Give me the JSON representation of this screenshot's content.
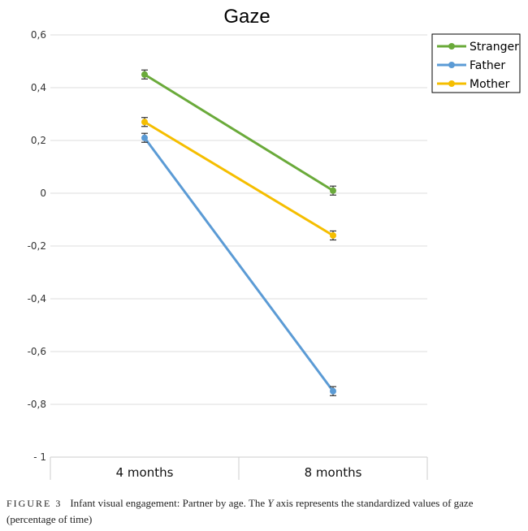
{
  "chart_data": {
    "type": "line",
    "title": "Gaze",
    "xlabel": "",
    "ylabel": "",
    "categories": [
      "4 months",
      "8 months"
    ],
    "ylim": [
      -1,
      0.6
    ],
    "yticks": [
      {
        "value": 0.6,
        "label": "0,6"
      },
      {
        "value": 0.4,
        "label": "0,4"
      },
      {
        "value": 0.2,
        "label": "0,2"
      },
      {
        "value": 0,
        "label": "0"
      },
      {
        "value": -0.2,
        "label": "-0,2"
      },
      {
        "value": -0.4,
        "label": "-0,4"
      },
      {
        "value": -0.6,
        "label": "-0,6"
      },
      {
        "value": -0.8,
        "label": "-0,8"
      },
      {
        "value": -1,
        "label": "- 1"
      }
    ],
    "grid": true,
    "legend_position": "top-right",
    "series": [
      {
        "name": "Stranger",
        "color": "#6aaa3a",
        "values": [
          0.45,
          0.01
        ],
        "errors": [
          0.017,
          0.017
        ]
      },
      {
        "name": "Father",
        "color": "#5b9bd5",
        "values": [
          0.21,
          -0.75
        ],
        "errors": [
          0.017,
          0.017
        ]
      },
      {
        "name": "Mother",
        "color": "#f5be00",
        "values": [
          0.27,
          -0.16
        ],
        "errors": [
          0.017,
          0.017
        ]
      }
    ]
  },
  "caption": {
    "figure_label": "FIGURE 3",
    "text_before_y": "Infant visual engagement: Partner by age. The ",
    "y_letter": "Y",
    "text_after_y": " axis represents the standardized values of gaze (percentage of time)"
  }
}
